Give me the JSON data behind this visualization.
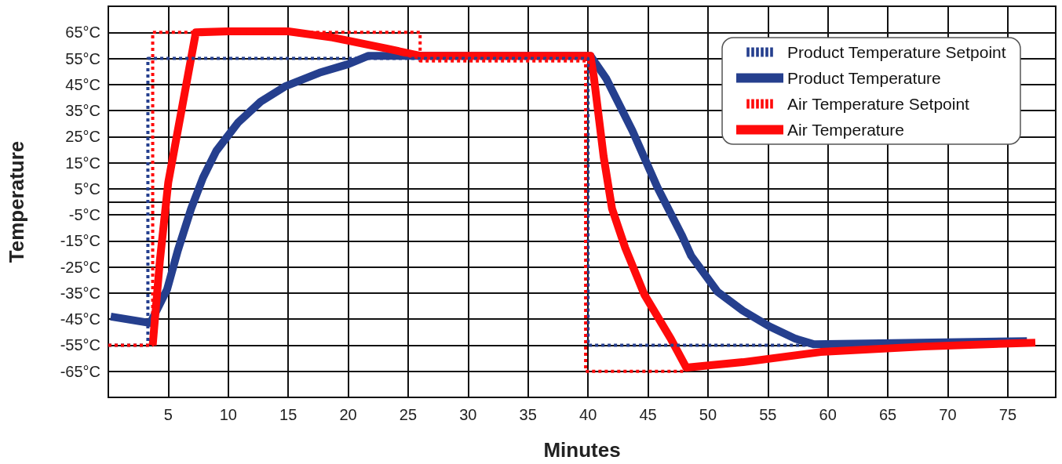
{
  "chart_data": {
    "type": "line",
    "xlabel": "Minutes",
    "ylabel": "Temperature",
    "xlim": [
      0,
      79
    ],
    "xticks": [
      5,
      10,
      15,
      20,
      25,
      30,
      35,
      40,
      45,
      50,
      55,
      60,
      65,
      70,
      75
    ],
    "ylim": [
      -75,
      75
    ],
    "yticks": [
      {
        "value": -75,
        "label": null
      },
      {
        "value": -65,
        "label": "-65°C"
      },
      {
        "value": -55,
        "label": "-55°C"
      },
      {
        "value": -45,
        "label": "-45°C"
      },
      {
        "value": -35,
        "label": "-35°C"
      },
      {
        "value": -25,
        "label": "-25°C"
      },
      {
        "value": -15,
        "label": "-15°C"
      },
      {
        "value": -5,
        "label": "-5°C"
      },
      {
        "value": 5,
        "label": "5°C"
      },
      {
        "value": 15,
        "label": "15°C"
      },
      {
        "value": 25,
        "label": "25°C"
      },
      {
        "value": 35,
        "label": "35°C"
      },
      {
        "value": 45,
        "label": "45°C"
      },
      {
        "value": 55,
        "label": "55°C"
      },
      {
        "value": 65,
        "label": "65°C"
      },
      {
        "value": 75,
        "label": null
      }
    ],
    "grid": true,
    "legend": "top right",
    "marker": "none",
    "series": [
      {
        "name": "Product Temperature Setpoint",
        "color": "#253f8e",
        "line_style": "dotted",
        "x": [
          0,
          3.3,
          3.3,
          40,
          40,
          58.8
        ],
        "values": [
          -55,
          -55,
          55,
          55,
          -55,
          -55
        ]
      },
      {
        "name": "Product Temperature",
        "color": "#253f8e",
        "line_style": "solid",
        "x": [
          0.2,
          3.5,
          4.9,
          5.8,
          6.9,
          7.9,
          9.0,
          10.8,
          12.7,
          14.8,
          17.6,
          20.0,
          21.7,
          40.2,
          41.5,
          43.7,
          45.8,
          47.8,
          48.6,
          50.8,
          52.9,
          55.1,
          57.3,
          58.8,
          76.6
        ],
        "values": [
          -44,
          -46.5,
          -33.6,
          -18.6,
          -2.7,
          9.3,
          19.5,
          30.3,
          38.4,
          44.4,
          49.5,
          52.8,
          56,
          56,
          47.4,
          27.3,
          5.4,
          -12.6,
          -20.7,
          -34.5,
          -41.7,
          -47.7,
          -52.5,
          -54.6,
          -53.4
        ]
      },
      {
        "name": "Air Temperature Setpoint",
        "color": "#ff0a0a",
        "line_style": "dotted",
        "x": [
          0,
          3.7,
          3.7,
          26,
          26,
          39.8,
          39.8,
          48.2
        ],
        "values": [
          -55,
          -55,
          65,
          65,
          54,
          54,
          -65,
          -65
        ]
      },
      {
        "name": "Air Temperature",
        "color": "#ff0a0a",
        "line_style": "solid",
        "x": [
          3.7,
          4.3,
          5.0,
          6.2,
          7.3,
          10,
          15,
          18.7,
          20.0,
          23.2,
          26.0,
          40.2,
          40.5,
          41.3,
          42.0,
          43.1,
          44.7,
          46.9,
          48.2,
          52.9,
          59.4,
          68.0,
          77.3
        ],
        "values": [
          -55,
          -22.5,
          7.5,
          37.5,
          65,
          65.4,
          65.4,
          63,
          61.8,
          58.8,
          56,
          56,
          47.4,
          17.4,
          -2.6,
          -17.6,
          -35.6,
          -52.5,
          -63.6,
          -61.5,
          -57.6,
          -55.5,
          -54
        ]
      }
    ]
  }
}
